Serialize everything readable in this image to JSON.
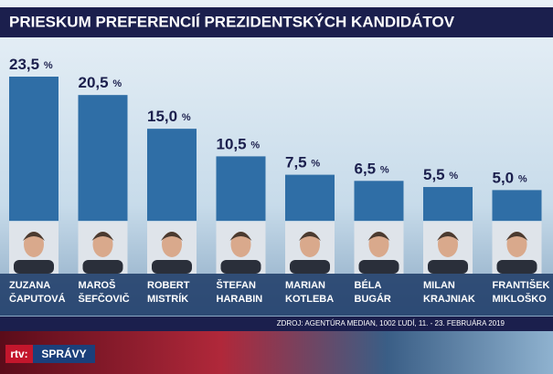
{
  "chart_data": {
    "type": "bar",
    "title": "PRIESKUM PREFERENCIÍ PREZIDENTSKÝCH KANDIDÁTOV",
    "categories": [
      "ZUZANA ČAPUTOVÁ",
      "MAROŠ ŠEFČOVIČ",
      "ROBERT MISTRÍK",
      "ŠTEFAN HARABIN",
      "MARIAN KOTLEBA",
      "BÉLA BUGÁR",
      "MILAN KRAJNIAK",
      "FRANTIŠEK MIKLOŠKO"
    ],
    "values": [
      23.5,
      20.5,
      15.0,
      10.5,
      7.5,
      6.5,
      5.5,
      5.0
    ],
    "value_labels": [
      "23,5 %",
      "20,5 %",
      "15,0 %",
      "10,5 %",
      "7,5 %",
      "6,5 %",
      "5,5 %",
      "5,0 %"
    ],
    "color": "#2f6ea6",
    "source": "ZDROJ: AGENTÚRA MEDIAN, 1002 ĽUDÍ, 11. - 23. FEBRUÁRA 2019"
  },
  "channel": {
    "logo": "rtv:",
    "program": "SPRÁVY"
  }
}
